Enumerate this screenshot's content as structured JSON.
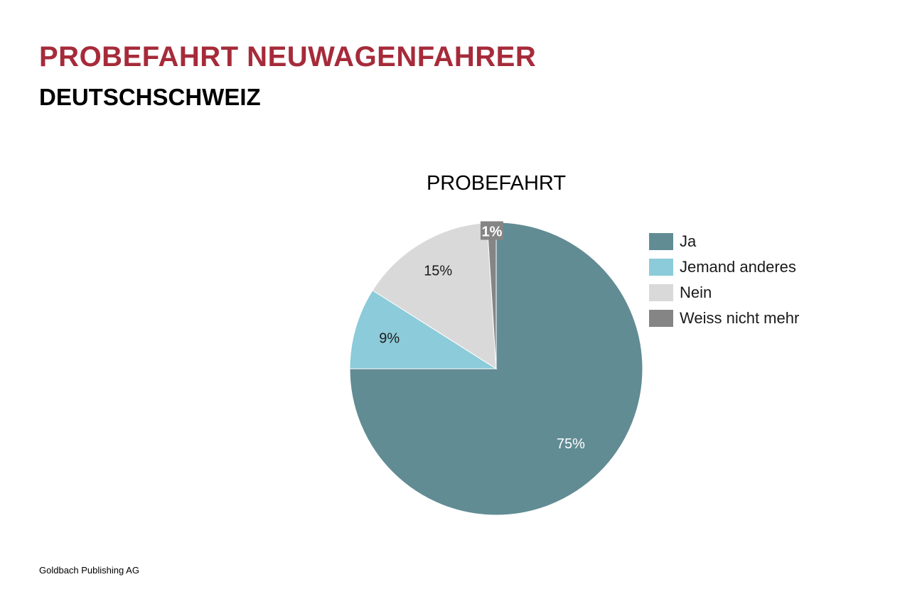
{
  "slide": {
    "title": "PROBEFAHRT NEUWAGENFAHRER",
    "subtitle": "DEUTSCHSCHWEIZ",
    "footer": "Goldbach Publishing AG",
    "title_color": "#a62b3a"
  },
  "chart_data": {
    "type": "pie",
    "title": "PROBEFAHRT",
    "legend_position": "right",
    "start": "top",
    "direction": "clockwise",
    "slices": [
      {
        "label": "Ja",
        "value": 75,
        "display": "75%",
        "color": "#628c94",
        "label_color": "#ffffff"
      },
      {
        "label": "Jemand anderes",
        "value": 9,
        "display": "9%",
        "color": "#8ccbd9",
        "label_color": "#1a1a1a"
      },
      {
        "label": "Nein",
        "value": 15,
        "display": "15%",
        "color": "#d9d9d9",
        "label_color": "#1a1a1a"
      },
      {
        "label": "Weiss nicht mehr",
        "value": 1,
        "display": "1%",
        "color": "#858585",
        "label_color": "#ffffff"
      }
    ]
  }
}
